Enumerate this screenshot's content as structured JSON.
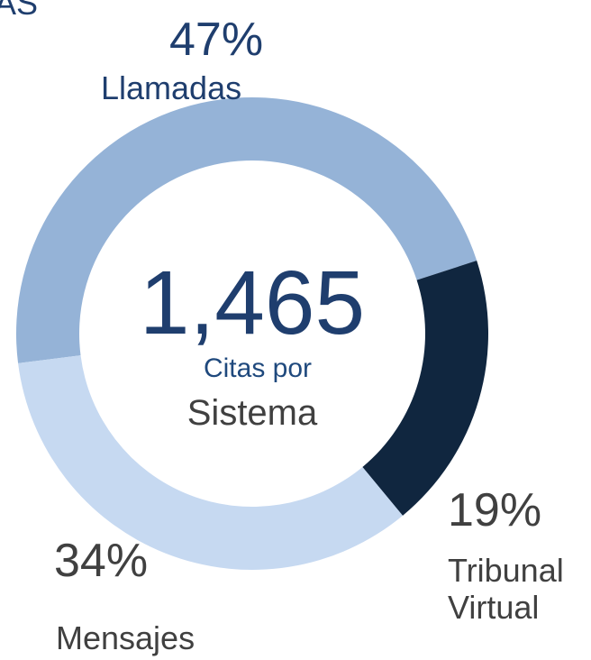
{
  "chart_data": {
    "type": "donut",
    "title": "AS",
    "categories": [
      "Llamadas",
      "Tribunal Virtual",
      "Mensajes"
    ],
    "values": [
      47,
      19,
      34
    ],
    "value_labels": [
      "47%",
      "19%",
      "34%"
    ],
    "colors": [
      "#95b3d7",
      "#10263f",
      "#c6d9f1"
    ],
    "center_title": "1,465",
    "center_subtitle": [
      "Citas por",
      "Sistema"
    ]
  }
}
